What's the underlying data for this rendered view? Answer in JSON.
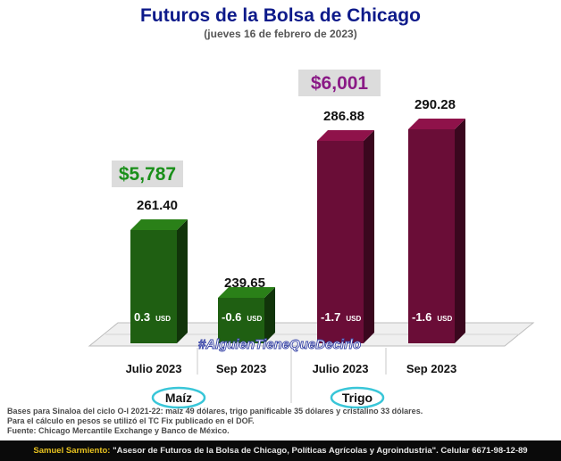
{
  "header": {
    "title": "Futuros de la Bolsa de Chicago",
    "subtitle": "(jueves 16 de febrero de 2023)"
  },
  "chart_data": {
    "type": "bar",
    "categories": [
      "Julio 2023",
      "Sep 2023",
      "Julio 2023",
      "Sep 2023"
    ],
    "groups": [
      {
        "label": "Maíz",
        "categories": [
          "Julio 2023",
          "Sep 2023"
        ],
        "peso_price": "$5,787",
        "color": "#1f5f12"
      },
      {
        "label": "Trigo",
        "categories": [
          "Julio 2023",
          "Sep 2023"
        ],
        "peso_price": "$6,001",
        "color": "#6a0d37"
      }
    ],
    "values": [
      261.4,
      239.65,
      286.88,
      290.28
    ],
    "value_labels": [
      "261.40",
      "239.65",
      "286.88",
      "290.28"
    ],
    "changes": [
      "0.3",
      "-0.6",
      "-1.7",
      "-1.6"
    ],
    "change_unit": "USD",
    "colors": [
      "#1f5f12",
      "#1f5f12",
      "#6a0d37",
      "#6a0d37"
    ],
    "watermark": "#AlguienTieneQueDecirlo",
    "grid": false,
    "legend": "none"
  },
  "footnotes": [
    "Bases para Sinaloa del ciclo O-I 2021-22: maíz 49 dólares, trigo panificable 35 dólares y cristalino 33 dólares.",
    "Para el cálculo en pesos se utilizó el TC Fix publicado en el DOF.",
    "Fuente: Chicago Mercantile Exchange y Banco de México."
  ],
  "footer": {
    "name": "Samuel Sarmiento:",
    "text": " \"Asesor de Futuros de la Bolsa de Chicago, Políticas Agrícolas y Agroindustria\". Celular 6671-98-12-89"
  }
}
